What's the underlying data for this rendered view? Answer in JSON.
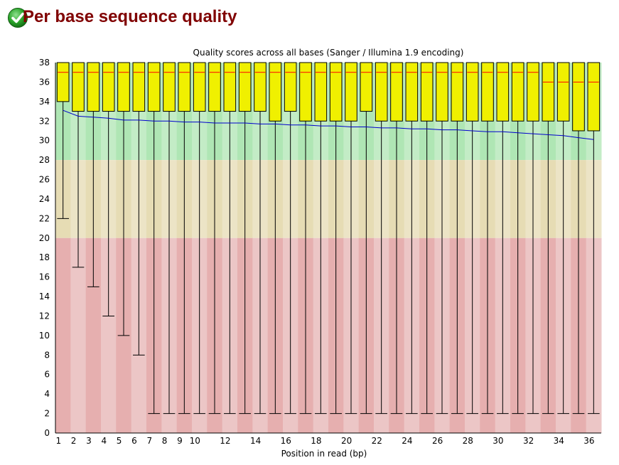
{
  "page": {
    "title": "Per base sequence quality",
    "status_icon": "pass-check-icon",
    "status_color": "#2aa52a",
    "title_color": "#800000"
  },
  "chart_data": {
    "type": "boxplot",
    "title": "Quality scores across all bases (Sanger / Illumina 1.9 encoding)",
    "xlabel": "Position in read (bp)",
    "ylabel": "",
    "ylim": [
      0,
      38
    ],
    "yticks": [
      0,
      2,
      4,
      6,
      8,
      10,
      12,
      14,
      16,
      18,
      20,
      22,
      24,
      26,
      28,
      30,
      32,
      34,
      36,
      38
    ],
    "xtick_labels": [
      "1",
      "2",
      "3",
      "4",
      "5",
      "6",
      "7",
      "8",
      "9",
      "10",
      "",
      "12",
      "",
      "14",
      "",
      "16",
      "",
      "18",
      "",
      "20",
      "",
      "22",
      "",
      "24",
      "",
      "26",
      "",
      "28",
      "",
      "30",
      "",
      "32",
      "",
      "34",
      "",
      "36"
    ],
    "positions": [
      1,
      2,
      3,
      4,
      5,
      6,
      7,
      8,
      9,
      10,
      11,
      12,
      13,
      14,
      15,
      16,
      17,
      18,
      19,
      20,
      21,
      22,
      23,
      24,
      25,
      26,
      27,
      28,
      29,
      30,
      31,
      32,
      33,
      34,
      35,
      36
    ],
    "zones": [
      {
        "name": "good",
        "from": 28,
        "to": 38,
        "color_a": "#afe6b4",
        "color_b": "#c3ecc6"
      },
      {
        "name": "reasonable",
        "from": 20,
        "to": 28,
        "color_a": "#e6dcb4",
        "color_b": "#ece4c6"
      },
      {
        "name": "poor",
        "from": 0,
        "to": 20,
        "color_a": "#e6afaf",
        "color_b": "#ecc6c6"
      }
    ],
    "series": [
      {
        "name": "Upper quartile",
        "values": [
          38,
          38,
          38,
          38,
          38,
          38,
          38,
          38,
          38,
          38,
          38,
          38,
          38,
          38,
          38,
          38,
          38,
          38,
          38,
          38,
          38,
          38,
          38,
          38,
          38,
          38,
          38,
          38,
          38,
          38,
          38,
          38,
          38,
          38,
          38,
          38
        ]
      },
      {
        "name": "Lower quartile",
        "values": [
          34,
          33,
          33,
          33,
          33,
          33,
          33,
          33,
          33,
          33,
          33,
          33,
          33,
          33,
          32,
          33,
          32,
          32,
          32,
          32,
          33,
          32,
          32,
          32,
          32,
          32,
          32,
          32,
          32,
          32,
          32,
          32,
          32,
          32,
          31,
          31
        ]
      },
      {
        "name": "Median",
        "values": [
          37,
          37,
          37,
          37,
          37,
          37,
          37,
          37,
          37,
          37,
          37,
          37,
          37,
          37,
          37,
          37,
          37,
          37,
          37,
          37,
          37,
          37,
          37,
          37,
          37,
          37,
          37,
          37,
          37,
          37,
          37,
          37,
          36,
          36,
          36,
          36
        ]
      },
      {
        "name": "10th percentile",
        "values": [
          22,
          17,
          15,
          12,
          10,
          8,
          2,
          2,
          2,
          2,
          2,
          2,
          2,
          2,
          2,
          2,
          2,
          2,
          2,
          2,
          2,
          2,
          2,
          2,
          2,
          2,
          2,
          2,
          2,
          2,
          2,
          2,
          2,
          2,
          2,
          2
        ]
      },
      {
        "name": "90th percentile",
        "values": [
          38,
          38,
          38,
          38,
          38,
          38,
          38,
          38,
          38,
          38,
          38,
          38,
          38,
          38,
          38,
          38,
          38,
          38,
          38,
          38,
          38,
          38,
          38,
          38,
          38,
          38,
          38,
          38,
          38,
          38,
          38,
          38,
          38,
          38,
          38,
          38
        ]
      },
      {
        "name": "Mean",
        "values": [
          33.1,
          32.5,
          32.4,
          32.3,
          32.1,
          32.1,
          32.0,
          32.0,
          31.9,
          31.9,
          31.8,
          31.8,
          31.8,
          31.7,
          31.7,
          31.6,
          31.6,
          31.5,
          31.5,
          31.4,
          31.4,
          31.3,
          31.3,
          31.2,
          31.2,
          31.1,
          31.1,
          31.0,
          30.9,
          30.9,
          30.8,
          30.7,
          30.6,
          30.5,
          30.3,
          30.1
        ]
      }
    ],
    "colors": {
      "box_fill": "#f0f000",
      "box_stroke": "#000000",
      "median": "#ff0000",
      "mean": "#0000cc",
      "axis": "#000000"
    }
  }
}
